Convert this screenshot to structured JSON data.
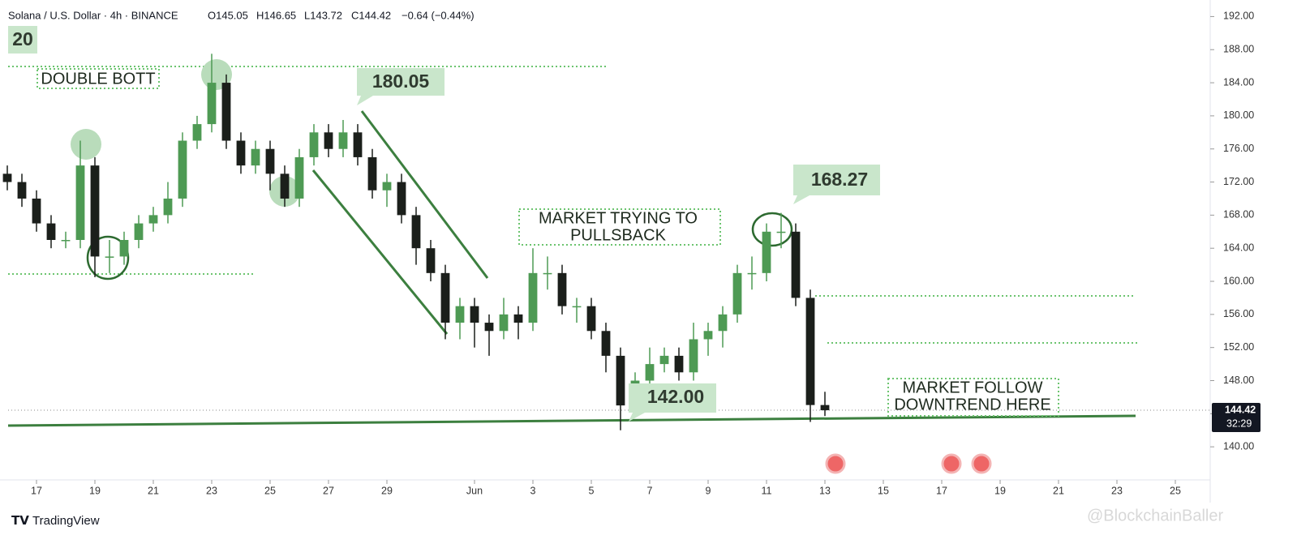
{
  "chart_data": {
    "type": "candlestick",
    "header": {
      "symbol": "Solana / U.S. Dollar · 4h · BINANCE",
      "open": "O145.05",
      "high": "H146.65",
      "low": "L143.72",
      "close": "C144.42",
      "change": "−0.64 (−0.44%)"
    },
    "x": [
      -1,
      -0.5,
      0,
      0.5,
      1,
      1.5,
      2,
      2.5,
      3,
      3.5,
      4,
      4.5,
      5,
      5.5,
      6,
      6.5,
      7,
      7.5,
      8,
      8.5,
      9,
      9.5,
      10,
      10.5,
      11,
      11.5,
      12,
      12.5,
      13,
      13.5,
      14,
      14.5,
      15,
      15.5,
      16,
      16.5,
      17,
      17.5,
      18,
      18.5,
      19,
      19.5,
      20,
      20.5,
      21,
      21.5,
      22,
      22.5,
      23,
      23.5,
      24,
      24.5,
      25,
      25.5,
      26,
      26.5,
      27
    ],
    "open": [
      173,
      172,
      170,
      167,
      165,
      165,
      174,
      163,
      163,
      165,
      167,
      168,
      170,
      177,
      179,
      184,
      177,
      174,
      176,
      173,
      170,
      175,
      178,
      176,
      178,
      175,
      171,
      172,
      168,
      164,
      161,
      155,
      157,
      155,
      154,
      156,
      155,
      161,
      161,
      157,
      157,
      154,
      151,
      145,
      148,
      150,
      151,
      149,
      153,
      154,
      156,
      161,
      161,
      166,
      166,
      158,
      145.05
    ],
    "high": [
      174,
      173,
      171,
      168,
      166,
      177,
      175,
      165,
      166,
      168,
      169,
      172,
      178,
      180,
      187.5,
      185,
      178,
      177,
      177,
      174,
      176,
      179,
      179,
      179.5,
      179,
      176,
      173,
      173,
      169,
      165,
      162,
      158,
      158,
      156,
      158,
      157,
      164,
      163,
      162,
      158,
      158,
      155,
      152,
      149,
      152,
      152,
      152,
      155,
      155,
      157,
      162,
      163,
      167,
      168.27,
      167,
      159,
      146.65
    ],
    "low": [
      171,
      169,
      166,
      164,
      164,
      164,
      160.5,
      161,
      162,
      164,
      166,
      167,
      169,
      176,
      178,
      176,
      173,
      173,
      171,
      169,
      169,
      174,
      175,
      175,
      174,
      170,
      169,
      167,
      162,
      160,
      153,
      153,
      152,
      151,
      153,
      153,
      154,
      159,
      156,
      155,
      153,
      149,
      142,
      144,
      147,
      149,
      148,
      148,
      151,
      152,
      155,
      159,
      160,
      164,
      157,
      143,
      143.72
    ],
    "close": [
      172,
      170,
      167,
      165,
      165,
      174,
      163,
      163,
      165,
      167,
      168,
      170,
      177,
      179,
      184,
      177,
      174,
      176,
      173,
      170,
      175,
      178,
      176,
      178,
      175,
      171,
      172,
      168,
      164,
      161,
      155,
      157,
      155,
      154,
      156,
      155,
      161,
      161,
      157,
      157,
      154,
      151,
      145,
      148,
      150,
      151,
      149,
      153,
      154,
      156,
      161,
      161,
      166,
      166,
      158,
      145.05,
      144.42
    ],
    "up_color": "#4e9a54",
    "down_color": "#1b1f1b",
    "xlim": [
      -1,
      40
    ],
    "xticks": [
      {
        "value": 0,
        "label": "17"
      },
      {
        "value": 2,
        "label": "19"
      },
      {
        "value": 4,
        "label": "21"
      },
      {
        "value": 6,
        "label": "23"
      },
      {
        "value": 8,
        "label": "25"
      },
      {
        "value": 10,
        "label": "27"
      },
      {
        "value": 12,
        "label": "29"
      },
      {
        "value": 15,
        "label": "Jun"
      },
      {
        "value": 17,
        "label": "3"
      },
      {
        "value": 19,
        "label": "5"
      },
      {
        "value": 21,
        "label": "7"
      },
      {
        "value": 23,
        "label": "9"
      },
      {
        "value": 25,
        "label": "11"
      },
      {
        "value": 27,
        "label": "13"
      },
      {
        "value": 29,
        "label": "15"
      },
      {
        "value": 31,
        "label": "17"
      },
      {
        "value": 33,
        "label": "19"
      },
      {
        "value": 35,
        "label": "21"
      },
      {
        "value": 37,
        "label": "23"
      },
      {
        "value": 39,
        "label": "25"
      }
    ],
    "ylim": [
      136,
      194
    ],
    "yticks": [
      {
        "value": 140,
        "label": "140.00"
      },
      {
        "value": 144,
        "label": "144.00"
      },
      {
        "value": 148,
        "label": "148.00"
      },
      {
        "value": 152,
        "label": "152.00"
      },
      {
        "value": 156,
        "label": "156.00"
      },
      {
        "value": 160,
        "label": "160.00"
      },
      {
        "value": 164,
        "label": "164.00"
      },
      {
        "value": 168,
        "label": "168.00"
      },
      {
        "value": 172,
        "label": "172.00"
      },
      {
        "value": 176,
        "label": "176.00"
      },
      {
        "value": 180,
        "label": "180.00"
      },
      {
        "value": 184,
        "label": "184.00"
      },
      {
        "value": 188,
        "label": "188.00"
      },
      {
        "value": 192,
        "label": "192.00"
      }
    ],
    "last_price": {
      "value": 144.42,
      "label": "144.42"
    },
    "countdown": "32:29",
    "annotations": [
      {
        "text": "20"
      },
      {
        "text": "DOUBLE BOTT"
      },
      {
        "text": "180.05"
      },
      {
        "lines": [
          "MARKET TRYING TO",
          "PULLSBACK"
        ]
      },
      {
        "text": "168.27"
      },
      {
        "text": "142.00"
      },
      {
        "lines": [
          "MARKET FOLLOW",
          "DOWNTREND HERE"
        ]
      }
    ],
    "brand": "TradingView",
    "watermark": "@BlockchainBaller"
  }
}
